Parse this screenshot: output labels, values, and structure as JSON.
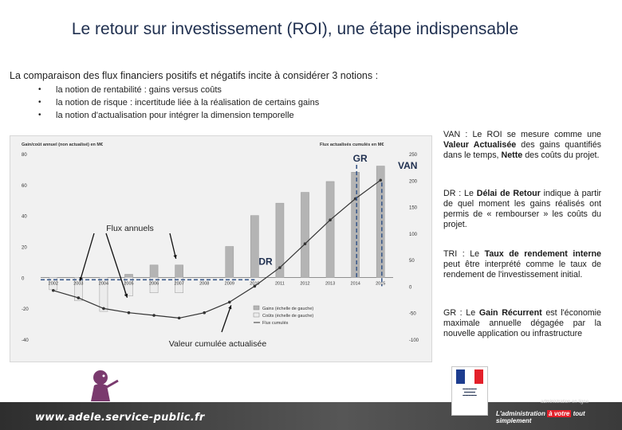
{
  "slide": {
    "title": "Le retour sur investissement (ROI), une étape indispensable",
    "intro": "La comparaison des flux financiers positifs et négatifs incite à considérer 3 notions :",
    "bullets": [
      "la notion de rentabilité : gains versus coûts",
      "la notion de risque : incertitude liée à la réalisation de certains gains",
      "la notion d'actualisation pour intégrer la dimension temporelle"
    ]
  },
  "chart_data": {
    "type": "bar",
    "title_left": "Gain/coût annuel (non actualisé) en M€",
    "title_right": "Flux actualisés cumulés en M€",
    "categories": [
      "2002",
      "2003",
      "2004",
      "2005",
      "2006",
      "2007",
      "2008",
      "2009",
      "2010",
      "2011",
      "2012",
      "2013",
      "2014",
      "2015"
    ],
    "ylim_left": [
      -40,
      80
    ],
    "yticks_left": [
      "80",
      "60",
      "40",
      "20",
      "0",
      "-20",
      "-40"
    ],
    "ylim_right": [
      -100,
      250
    ],
    "yticks_right": [
      "250",
      "200",
      "150",
      "100",
      "50",
      "0",
      "-50",
      "-100"
    ],
    "series": [
      {
        "name": "Gains (échelle de gauche)",
        "axis": "left",
        "values": [
          0,
          0,
          0,
          2,
          8,
          8,
          0,
          20,
          40,
          48,
          55,
          62,
          68,
          72
        ]
      },
      {
        "name": "Coûts (échelle de gauche)",
        "axis": "left",
        "values": [
          -8,
          -15,
          -22,
          -12,
          -10,
          -10,
          0,
          0,
          0,
          0,
          0,
          0,
          0,
          0
        ]
      },
      {
        "name": "Flux cumulés",
        "axis": "right",
        "values": [
          -8,
          -22,
          -42,
          -50,
          -55,
          -60,
          -50,
          -30,
          0,
          35,
          80,
          125,
          165,
          200
        ]
      }
    ],
    "legend": [
      "Gains (échelle de gauche)",
      "Coûts (échelle de gauche)",
      "Flux cumulés"
    ],
    "legend_position": "bottom-right",
    "annotations": {
      "gr": "GR",
      "van": "VAN",
      "dr": "DR",
      "flux_annuels": "Flux annuels",
      "valeur_cumulee": "Valeur cumulée actualisée"
    }
  },
  "notes": [
    {
      "lead": "VAN",
      "pre": " : Le ROI se mesure comme une ",
      "bold": "Valeur Actualisée",
      "post": " des gains quantifiés dans le temps, ",
      "bold2": "Nette",
      "post2": " des coûts du projet."
    },
    {
      "lead": "DR",
      "pre": " : Le ",
      "bold": "Délai de Retour",
      "post": " indique à partir de quel moment les gains réalisés ont permis de « rembourser » les coûts du projet.",
      "bold2": "",
      "post2": ""
    },
    {
      "lead": "TRI",
      "pre": " : Le ",
      "bold": "Taux de rendement interne",
      "post": " peut être interprété comme le taux de rendement de l'investissement initial.",
      "bold2": "",
      "post2": ""
    },
    {
      "lead": "GR",
      "pre": " : Le ",
      "bold": "Gain Récurrent",
      "post": " est l'économie maximale annuelle dégagée par la nouvelle application ou infrastructure",
      "bold2": "",
      "post2": ""
    }
  ],
  "footer": {
    "url": "www.adele.service-public.fr",
    "tagline_pre": "L'administration ",
    "tagline_hl": "à votre",
    "tagline_post": " tout simplement",
    "logo": "adèle",
    "logo_sub": "administration en ligne"
  },
  "colors": {
    "title": "#1f2f4f",
    "gains": "#b4b4b4",
    "costs": "#ececec",
    "flux": "#333333",
    "accent": "#1f2f4f",
    "dash": "#3c5a8a",
    "footer": "#444444"
  }
}
